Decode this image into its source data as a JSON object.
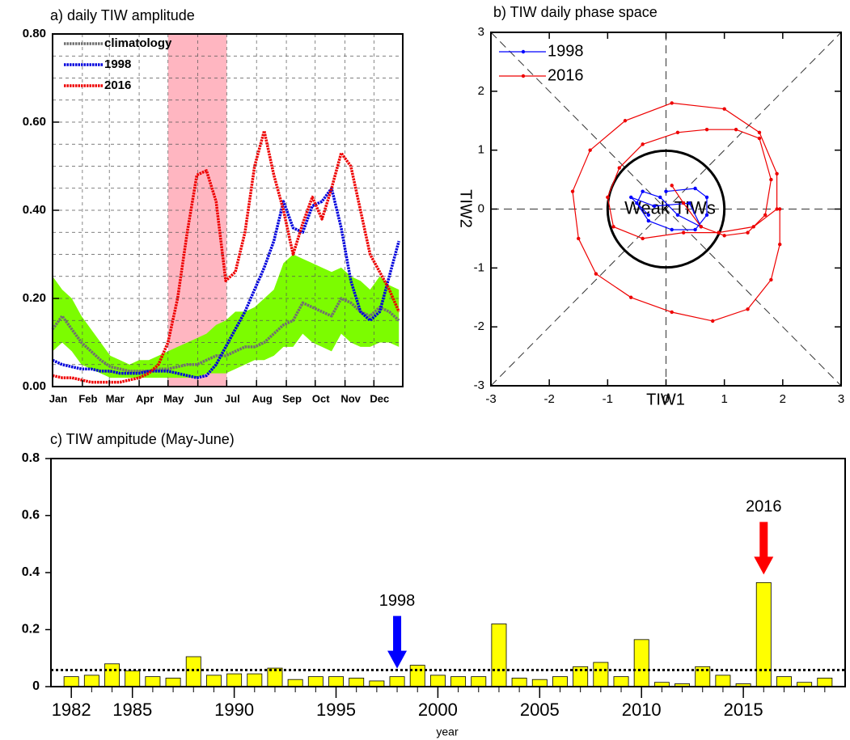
{
  "chart_data": [
    {
      "type": "line",
      "title": "a) daily TIW amplitude",
      "x": [
        1,
        11,
        21,
        31,
        41,
        51,
        61,
        71,
        81,
        91,
        101,
        111,
        121,
        131,
        141,
        151,
        161,
        171,
        181,
        191,
        201,
        211,
        221,
        231,
        241,
        251,
        261,
        271,
        281,
        291,
        301,
        311,
        321,
        331,
        341,
        351,
        361
      ],
      "xlim": [
        1,
        365
      ],
      "xticks": [
        {
          "value": 1,
          "label": "Jan"
        },
        {
          "value": 32,
          "label": "Feb"
        },
        {
          "value": 60,
          "label": "Mar"
        },
        {
          "value": 91,
          "label": "Apr"
        },
        {
          "value": 121,
          "label": "May"
        },
        {
          "value": 152,
          "label": "Jun"
        },
        {
          "value": 182,
          "label": "Jul"
        },
        {
          "value": 213,
          "label": "Aug"
        },
        {
          "value": 244,
          "label": "Sep"
        },
        {
          "value": 274,
          "label": "Oct"
        },
        {
          "value": 305,
          "label": "Nov"
        },
        {
          "value": 335,
          "label": "Dec"
        }
      ],
      "ylim": [
        0,
        0.8
      ],
      "yticks": [
        {
          "value": 0,
          "label": "0.00"
        },
        {
          "value": 0.2,
          "label": "0.20"
        },
        {
          "value": 0.4,
          "label": "0.40"
        },
        {
          "value": 0.6,
          "label": "0.60"
        },
        {
          "value": 0.8,
          "label": "0.80"
        }
      ],
      "minor_yticks": [
        0.05,
        0.1,
        0.15,
        0.25,
        0.3,
        0.35,
        0.45,
        0.5,
        0.55,
        0.65,
        0.7,
        0.75
      ],
      "grid": true,
      "highlight": [
        121,
        182
      ],
      "highlight_color": "#ffb6c1",
      "range": {
        "color": "#7cfc00",
        "lower": [
          0.08,
          0.1,
          0.08,
          0.05,
          0.04,
          0.03,
          0.02,
          0.02,
          0.02,
          0.02,
          0.02,
          0.02,
          0.02,
          0.02,
          0.02,
          0.02,
          0.03,
          0.03,
          0.03,
          0.04,
          0.05,
          0.06,
          0.06,
          0.07,
          0.09,
          0.09,
          0.12,
          0.1,
          0.09,
          0.08,
          0.12,
          0.1,
          0.09,
          0.09,
          0.1,
          0.1,
          0.09
        ],
        "upper": [
          0.25,
          0.22,
          0.2,
          0.16,
          0.13,
          0.1,
          0.07,
          0.06,
          0.05,
          0.06,
          0.06,
          0.07,
          0.08,
          0.09,
          0.1,
          0.11,
          0.12,
          0.14,
          0.15,
          0.17,
          0.17,
          0.18,
          0.2,
          0.22,
          0.28,
          0.3,
          0.29,
          0.28,
          0.27,
          0.26,
          0.27,
          0.25,
          0.24,
          0.22,
          0.25,
          0.23,
          0.22
        ]
      },
      "legend": "upper left",
      "series": [
        {
          "name": "climatology",
          "color": "#707070",
          "values": [
            0.13,
            0.16,
            0.13,
            0.1,
            0.08,
            0.06,
            0.045,
            0.04,
            0.035,
            0.035,
            0.035,
            0.04,
            0.04,
            0.045,
            0.05,
            0.05,
            0.06,
            0.07,
            0.07,
            0.08,
            0.09,
            0.09,
            0.1,
            0.12,
            0.14,
            0.15,
            0.19,
            0.18,
            0.17,
            0.16,
            0.2,
            0.19,
            0.17,
            0.16,
            0.18,
            0.17,
            0.15
          ]
        },
        {
          "name": "1998",
          "color": "#0000dd",
          "values": [
            0.06,
            0.05,
            0.045,
            0.04,
            0.04,
            0.035,
            0.035,
            0.03,
            0.03,
            0.03,
            0.035,
            0.035,
            0.035,
            0.03,
            0.025,
            0.02,
            0.025,
            0.05,
            0.09,
            0.13,
            0.17,
            0.22,
            0.27,
            0.33,
            0.42,
            0.36,
            0.35,
            0.41,
            0.42,
            0.45,
            0.36,
            0.24,
            0.17,
            0.15,
            0.17,
            0.25,
            0.33
          ]
        },
        {
          "name": "2016",
          "color": "#ee0000",
          "values": [
            0.025,
            0.02,
            0.02,
            0.015,
            0.01,
            0.01,
            0.01,
            0.01,
            0.015,
            0.02,
            0.03,
            0.05,
            0.1,
            0.2,
            0.35,
            0.48,
            0.49,
            0.42,
            0.24,
            0.26,
            0.35,
            0.5,
            0.58,
            0.48,
            0.4,
            0.3,
            0.37,
            0.43,
            0.38,
            0.45,
            0.53,
            0.5,
            0.4,
            0.3,
            0.26,
            0.22,
            0.17
          ]
        }
      ]
    },
    {
      "type": "scatter",
      "title": "b) TIW daily phase space",
      "xlabel": "TIW1",
      "ylabel": "TIW2",
      "xlim": [
        -3,
        3
      ],
      "ylim": [
        -3,
        3
      ],
      "xticks": [
        -3,
        -2,
        -1,
        0,
        1,
        2,
        3
      ],
      "yticks": [
        -3,
        -2,
        -1,
        0,
        1,
        2,
        3
      ],
      "circle": {
        "radius": 1,
        "label": "Weak TIWs"
      },
      "legend": "upper left",
      "series": [
        {
          "name": "1998",
          "color": "#0000ff",
          "x": [
            0.0,
            0.5,
            0.7,
            0.7,
            0.5,
            0.1,
            -0.3,
            -0.5,
            -0.4,
            -0.1,
            0.2,
            0.6,
            0.4,
            -0.2,
            -0.6,
            -0.3
          ],
          "values": [
            0.3,
            0.35,
            0.2,
            -0.1,
            -0.35,
            -0.35,
            -0.2,
            0.1,
            0.3,
            0.2,
            -0.1,
            -0.3,
            0.1,
            0.05,
            0.2,
            -0.1
          ]
        },
        {
          "name": "2016",
          "color": "#ee0000",
          "x": [
            0.1,
            0.3,
            0.6,
            1.0,
            1.4,
            1.7,
            1.8,
            1.6,
            1.2,
            0.7,
            0.2,
            -0.4,
            -0.8,
            -1.0,
            -0.9,
            -0.4,
            0.3,
            0.9,
            1.5,
            1.9,
            1.9,
            1.6,
            1.0,
            0.1,
            -0.7,
            -1.3,
            -1.6,
            -1.5,
            -1.2,
            -0.6,
            0.1,
            0.8,
            1.4,
            1.8,
            1.95,
            1.95
          ],
          "values": [
            0.4,
            0.1,
            -0.3,
            -0.45,
            -0.4,
            -0.1,
            0.5,
            1.2,
            1.35,
            1.35,
            1.3,
            1.1,
            0.7,
            0.2,
            -0.3,
            -0.5,
            -0.4,
            -0.4,
            -0.3,
            0.0,
            0.6,
            1.3,
            1.7,
            1.8,
            1.5,
            1.0,
            0.3,
            -0.5,
            -1.1,
            -1.5,
            -1.75,
            -1.9,
            -1.7,
            -1.2,
            -0.6,
            0.0
          ]
        }
      ]
    },
    {
      "type": "bar",
      "title": "c) TIW ampitude (May-June)",
      "xlabel": "year",
      "x": [
        1982,
        1983,
        1984,
        1985,
        1986,
        1987,
        1988,
        1989,
        1990,
        1991,
        1992,
        1993,
        1994,
        1995,
        1996,
        1997,
        1998,
        1999,
        2000,
        2001,
        2002,
        2003,
        2004,
        2005,
        2006,
        2007,
        2008,
        2009,
        2010,
        2011,
        2012,
        2013,
        2014,
        2015,
        2016,
        2017,
        2018,
        2019
      ],
      "values": [
        0.035,
        0.04,
        0.08,
        0.055,
        0.035,
        0.03,
        0.105,
        0.04,
        0.045,
        0.045,
        0.065,
        0.025,
        0.035,
        0.035,
        0.03,
        0.02,
        0.035,
        0.075,
        0.04,
        0.035,
        0.035,
        0.22,
        0.03,
        0.025,
        0.035,
        0.07,
        0.085,
        0.035,
        0.165,
        0.015,
        0.01,
        0.07,
        0.04,
        0.01,
        0.365,
        0.035,
        0.015,
        0.03
      ],
      "color": "#ffff00",
      "xlim": [
        1981,
        2020
      ],
      "xticks": [
        1982,
        1985,
        1990,
        1995,
        2000,
        2005,
        2010,
        2015
      ],
      "ylim": [
        0,
        0.8
      ],
      "yticks": [
        0,
        0.2,
        0.4,
        0.6,
        0.8
      ],
      "reference_line": 0.058,
      "annotations": [
        {
          "text": "1998",
          "x": 1998,
          "color": "#0000ff"
        },
        {
          "text": "2016",
          "x": 2016,
          "color": "#ff0000"
        }
      ]
    }
  ]
}
